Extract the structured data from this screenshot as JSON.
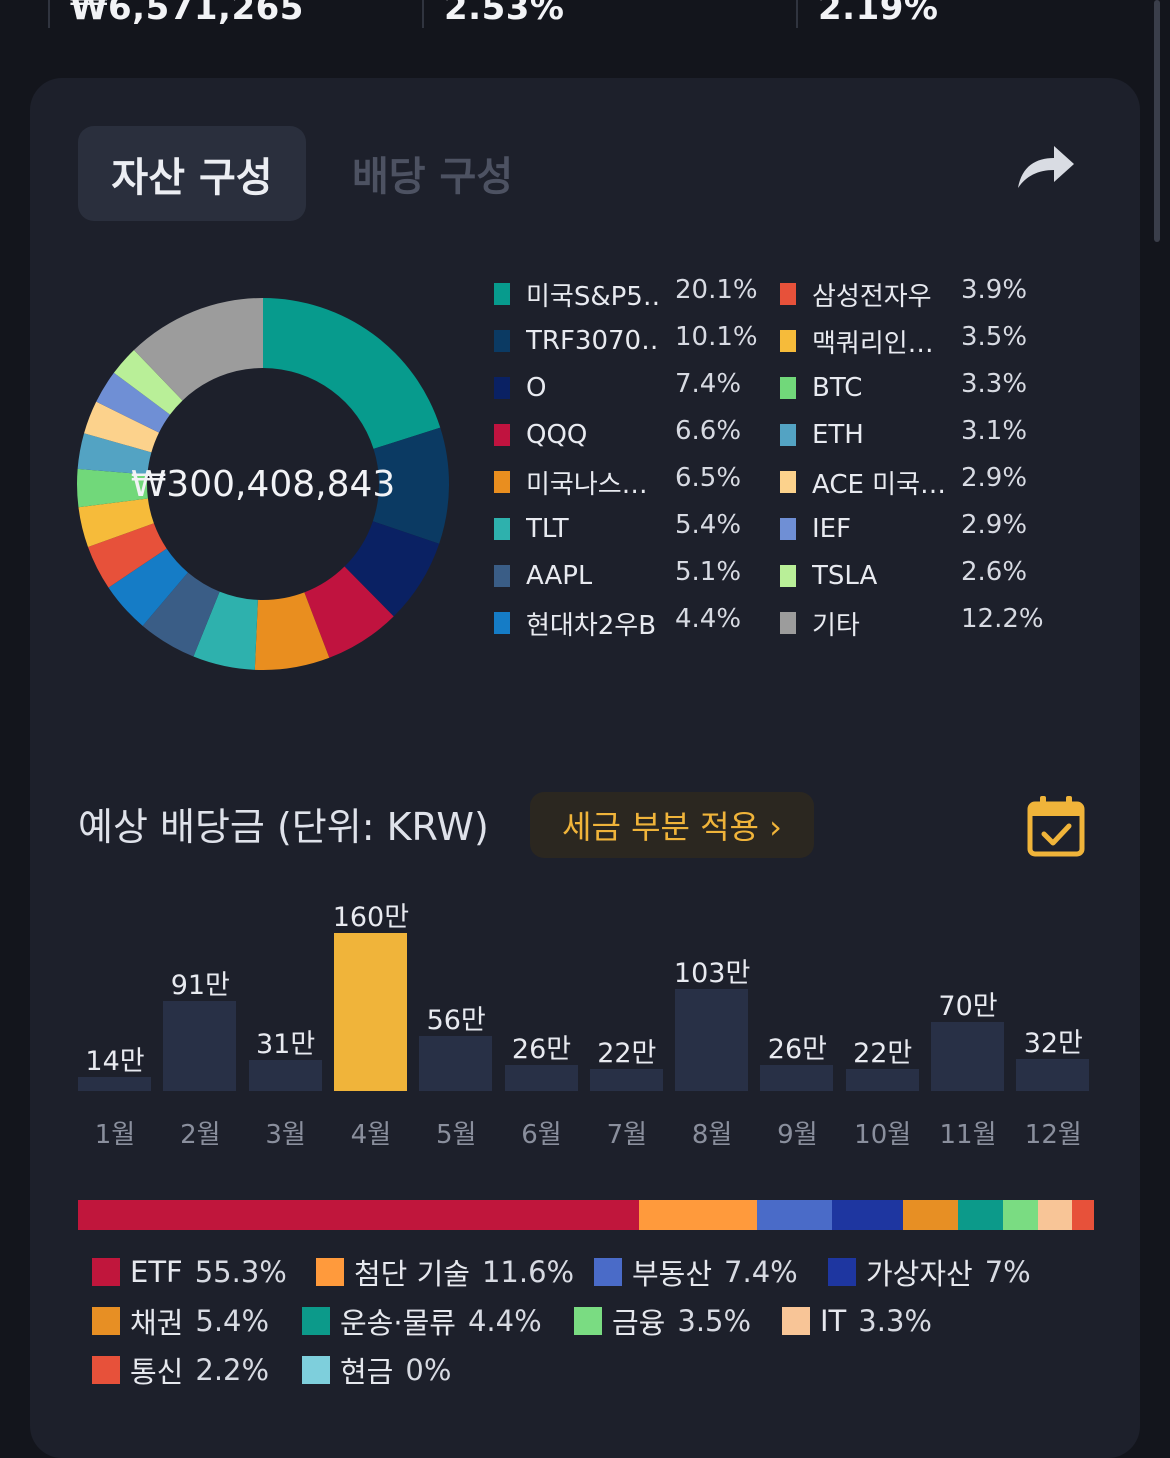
{
  "summary": {
    "values": [
      "₩6,571,265",
      "2.53%",
      "2.19%"
    ]
  },
  "tabs": [
    {
      "label": "자산 구성",
      "active": true
    },
    {
      "label": "배당 구성",
      "active": false
    }
  ],
  "icons": {
    "share": "share-arrow-icon",
    "calendar": "calendar-check-icon"
  },
  "composition": {
    "total": "₩300,408,843",
    "holdings": [
      {
        "name": "미국S&P5…",
        "pct": "20.1%",
        "value": 20.1,
        "color": "#079b8d"
      },
      {
        "name": "TRF3070…",
        "pct": "10.1%",
        "value": 10.1,
        "color": "#0b3a63"
      },
      {
        "name": "O",
        "pct": "7.4%",
        "value": 7.4,
        "color": "#0a2163"
      },
      {
        "name": "QQQ",
        "pct": "6.6%",
        "value": 6.6,
        "color": "#c0133f"
      },
      {
        "name": "미국나스…",
        "pct": "6.5%",
        "value": 6.5,
        "color": "#e98e1f"
      },
      {
        "name": "TLT",
        "pct": "5.4%",
        "value": 5.4,
        "color": "#2eb1ad"
      },
      {
        "name": "AAPL",
        "pct": "5.1%",
        "value": 5.1,
        "color": "#3a5d86"
      },
      {
        "name": "현대차2우B",
        "pct": "4.4%",
        "value": 4.4,
        "color": "#157cc6"
      },
      {
        "name": "삼성전자우",
        "pct": "3.9%",
        "value": 3.9,
        "color": "#e7513a"
      },
      {
        "name": "맥쿼리인…",
        "pct": "3.5%",
        "value": 3.5,
        "color": "#f6bb3a"
      },
      {
        "name": "BTC",
        "pct": "3.3%",
        "value": 3.3,
        "color": "#71d87a"
      },
      {
        "name": "ETH",
        "pct": "3.1%",
        "value": 3.1,
        "color": "#53a3c3"
      },
      {
        "name": "ACE 미국…",
        "pct": "2.9%",
        "value": 2.9,
        "color": "#fcd28c"
      },
      {
        "name": "IEF",
        "pct": "2.9%",
        "value": 2.9,
        "color": "#6f8fd5"
      },
      {
        "name": "TSLA",
        "pct": "2.6%",
        "value": 2.6,
        "color": "#b9ef98"
      },
      {
        "name": "기타",
        "pct": "12.2%",
        "value": 12.2,
        "color": "#9c9c9c"
      }
    ]
  },
  "dividends": {
    "title": "예상 배당금 (단위: KRW)",
    "tax_button": "세금 부분 적용 ›",
    "highlight_month": "4월"
  },
  "chart_data": {
    "type": "bar",
    "categories": [
      "1월",
      "2월",
      "3월",
      "4월",
      "5월",
      "6월",
      "7월",
      "8월",
      "9월",
      "10월",
      "11월",
      "12월"
    ],
    "values": [
      14,
      91,
      31,
      160,
      56,
      26,
      22,
      103,
      26,
      22,
      70,
      32
    ],
    "labels": [
      "14만",
      "91만",
      "31만",
      "160만",
      "56만",
      "26만",
      "22만",
      "103만",
      "26만",
      "22만",
      "70만",
      "32만"
    ],
    "ylim": [
      0,
      160
    ]
  },
  "sectors": [
    {
      "name": "ETF",
      "pct": "55.3%",
      "value": 55.3,
      "color": "#c0163c"
    },
    {
      "name": "첨단 기술",
      "pct": "11.6%",
      "value": 11.6,
      "color": "#ff9a3c"
    },
    {
      "name": "부동산",
      "pct": "7.4%",
      "value": 7.4,
      "color": "#4a6bc8"
    },
    {
      "name": "가상자산",
      "pct": "7%",
      "value": 7.0,
      "color": "#1e36a0"
    },
    {
      "name": "채권",
      "pct": "5.4%",
      "value": 5.4,
      "color": "#e78f24"
    },
    {
      "name": "운송·물류",
      "pct": "4.4%",
      "value": 4.4,
      "color": "#0c9a8a"
    },
    {
      "name": "금융",
      "pct": "3.5%",
      "value": 3.5,
      "color": "#7adc82"
    },
    {
      "name": "IT",
      "pct": "3.3%",
      "value": 3.3,
      "color": "#f8c597"
    },
    {
      "name": "통신",
      "pct": "2.2%",
      "value": 2.2,
      "color": "#e7513a"
    },
    {
      "name": "현금",
      "pct": "0%",
      "value": 0.0,
      "color": "#7ecfdc"
    }
  ]
}
